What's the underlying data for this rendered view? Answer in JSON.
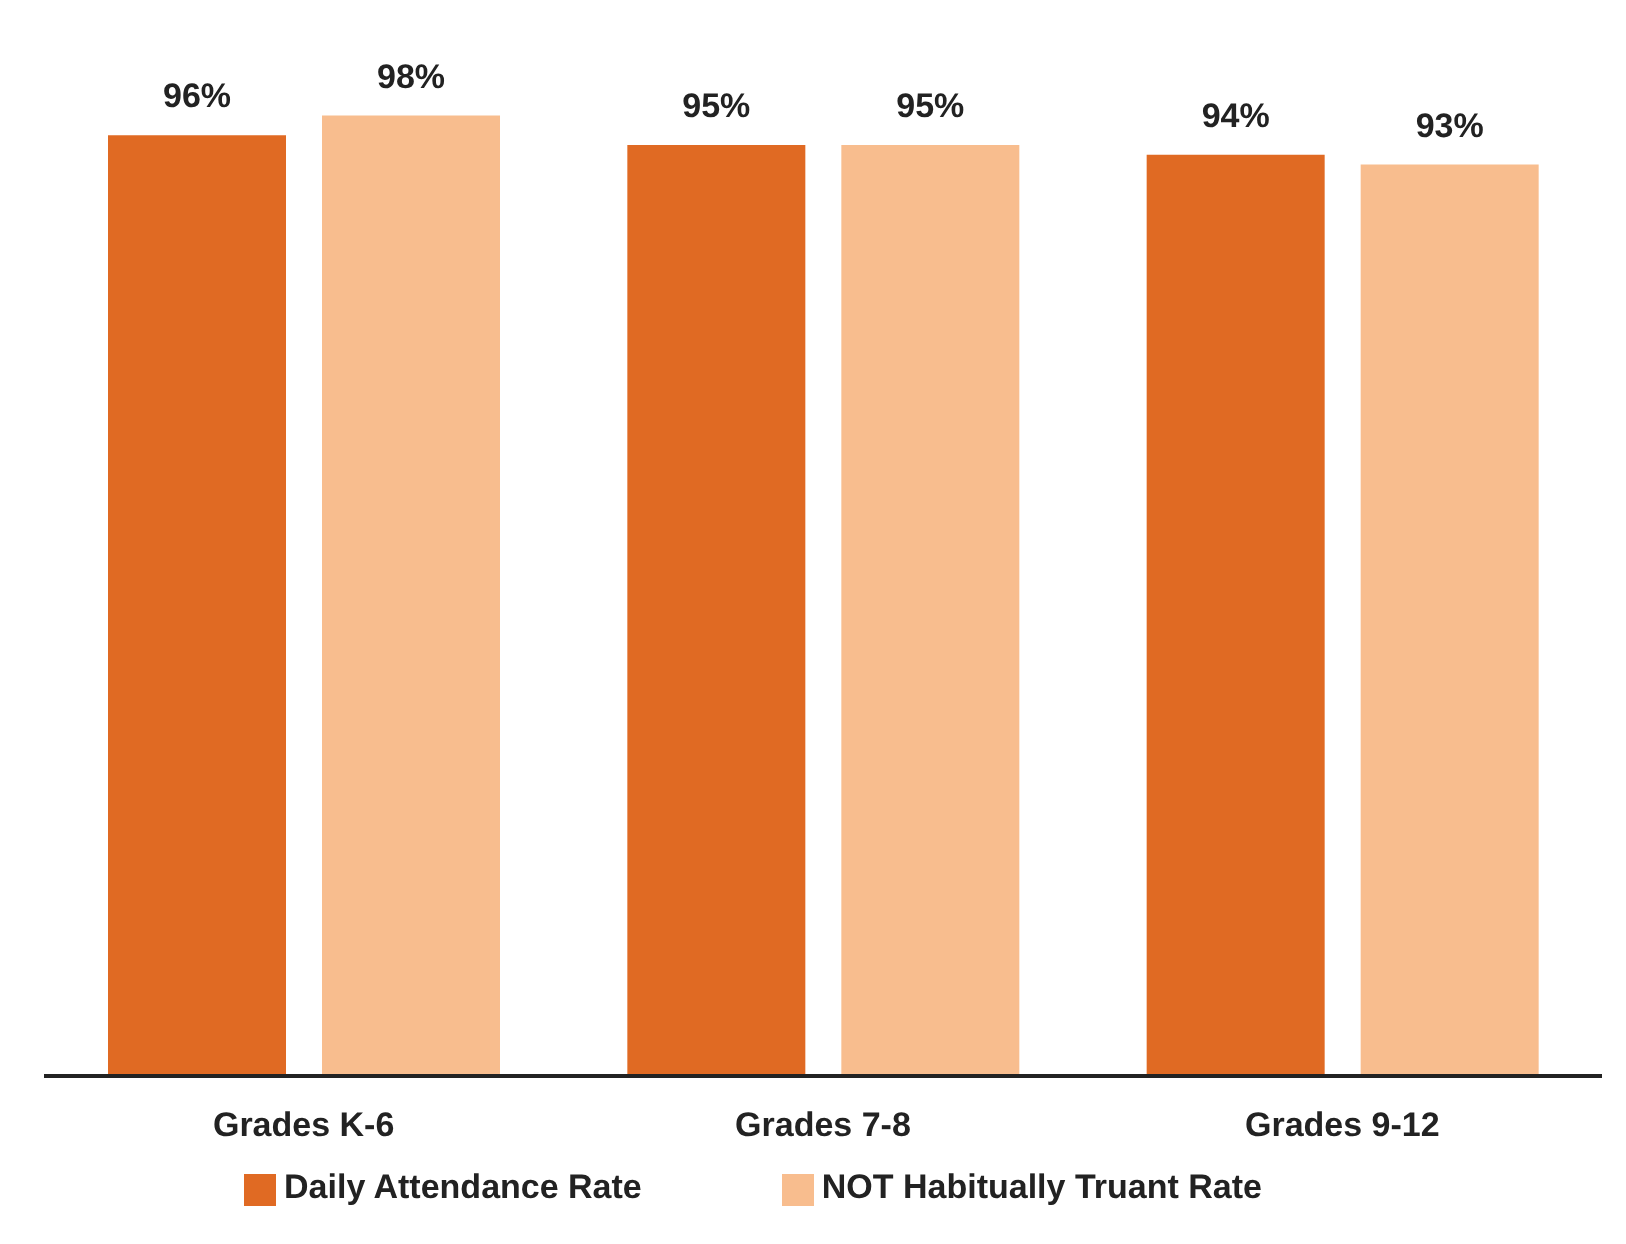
{
  "chart_data": {
    "type": "bar",
    "categories": [
      "Grades K-6",
      "Grades 7-8",
      "Grades 9-12"
    ],
    "series": [
      {
        "name": "Daily Attendance Rate",
        "color": "#e06a23",
        "values": [
          96,
          95,
          94
        ],
        "value_labels": [
          "96%",
          "95%",
          "94%"
        ]
      },
      {
        "name": "NOT Habitually Truant Rate",
        "color": "#f8bd8e",
        "values": [
          98,
          95,
          93
        ],
        "value_labels": [
          "98%",
          "95%",
          "93%"
        ]
      }
    ],
    "tick_labels": "x",
    "grid": false,
    "legend": "bottom"
  }
}
